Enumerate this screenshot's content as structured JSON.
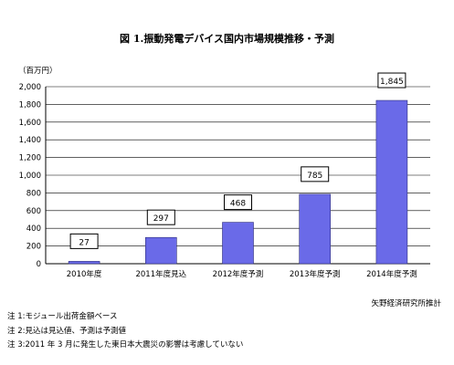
{
  "title": "図 1.振動発電デバイス国内市場規模推移・予測",
  "source": "矢野経済研究所推計",
  "notes": [
    "注 1:モジュール出荷金額ベース",
    "注 2:見込は見込値、予測は予測値",
    "注 3:2011 年 3 月に発生した東日本大震災の影響は考慮していない"
  ],
  "colors": {
    "bar": "#6a6ae8",
    "barEdge": "#2d2d7a",
    "grid": "#000000"
  },
  "chart_data": {
    "type": "bar",
    "unit_label": "（百万円）",
    "categories": [
      "2010年度",
      "2011年度見込",
      "2012年度予測",
      "2013年度予測",
      "2014年度予測"
    ],
    "values": [
      27,
      297,
      468,
      785,
      1845
    ],
    "ylim": [
      0,
      2000
    ],
    "yticks": [
      0,
      200,
      400,
      600,
      800,
      1000,
      1200,
      1400,
      1600,
      1800,
      2000
    ],
    "ytick_labels": [
      "0",
      "200",
      "400",
      "600",
      "800",
      "1,000",
      "1,200",
      "1,400",
      "1,600",
      "1,800",
      "2,000"
    ],
    "value_labels": [
      "27",
      "297",
      "468",
      "785",
      "1,845"
    ],
    "grid": true,
    "legend": "none"
  }
}
